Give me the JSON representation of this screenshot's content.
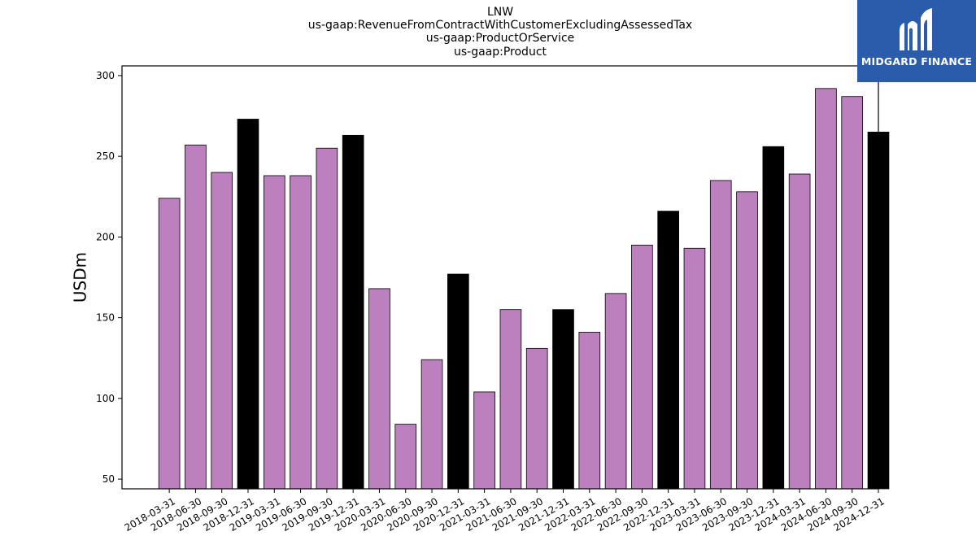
{
  "chart_data": {
    "type": "bar",
    "title_lines": [
      "LNW",
      "us-gaap:RevenueFromContractWithCustomerExcludingAssessedTax",
      "us-gaap:ProductOrService",
      "us-gaap:Product"
    ],
    "ylabel": "USDm",
    "xlabel": "",
    "ylim": [
      44,
      306
    ],
    "yticks": [
      50,
      100,
      150,
      200,
      250,
      300
    ],
    "categories": [
      "2018-03-31",
      "2018-06-30",
      "2018-09-30",
      "2018-12-31",
      "2019-03-31",
      "2019-06-30",
      "2019-09-30",
      "2019-12-31",
      "2020-03-31",
      "2020-06-30",
      "2020-09-30",
      "2020-12-31",
      "2021-03-31",
      "2021-06-30",
      "2021-09-30",
      "2021-12-31",
      "2022-03-31",
      "2022-06-30",
      "2022-09-30",
      "2022-12-31",
      "2023-03-31",
      "2023-06-30",
      "2023-09-30",
      "2023-12-31",
      "2024-03-31",
      "2024-06-30",
      "2024-09-30",
      "2024-12-31"
    ],
    "values": [
      224,
      257,
      240,
      273,
      238,
      238,
      255,
      263,
      168,
      84,
      124,
      177,
      104,
      155,
      131,
      155,
      141,
      165,
      195,
      216,
      193,
      235,
      228,
      256,
      239,
      292,
      287,
      265
    ],
    "colors": {
      "quarter": "#bb80bd",
      "year_end": "#000000"
    },
    "grid": false,
    "legend": "none"
  },
  "logo": {
    "text": "MIDGARD FINANCE",
    "icon": "midgard-logo-icon"
  }
}
